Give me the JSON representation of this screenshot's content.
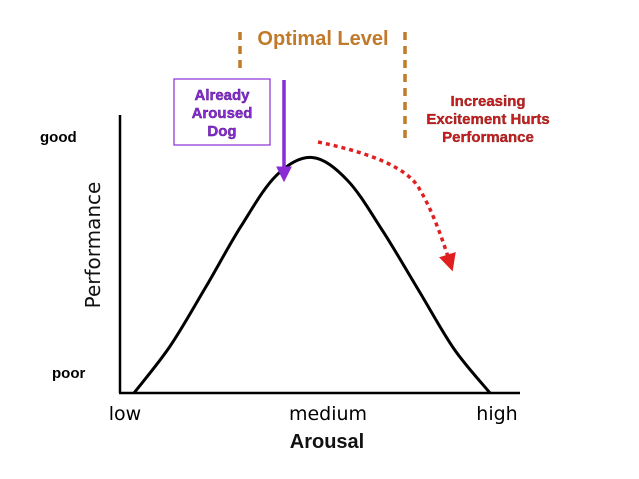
{
  "chart_data": {
    "type": "line",
    "xlabel": "Arousal",
    "ylabel": "Performance",
    "x_ticks": [
      "low",
      "medium",
      "high"
    ],
    "y_levels": [
      "good",
      "poor"
    ],
    "series": [
      {
        "x": [
          0.0,
          0.1,
          0.2,
          0.3,
          0.4,
          0.5,
          0.6,
          0.7,
          0.8,
          0.9,
          1.0
        ],
        "y": [
          0.0,
          0.18,
          0.41,
          0.65,
          0.85,
          0.92,
          0.83,
          0.63,
          0.4,
          0.17,
          0.0
        ]
      }
    ],
    "annotations": {
      "optimal_label": "Optimal Level",
      "aroused_box": [
        "Already",
        "Aroused",
        "Dog"
      ],
      "hurts_label": [
        "Increasing",
        "Excitement Hurts",
        "Performance"
      ]
    },
    "colors": {
      "curve": "#000000",
      "optimal": "#c07a2a",
      "purple": "#8a2bd6",
      "red": "#e02020"
    },
    "grid": false,
    "legend": "none"
  }
}
